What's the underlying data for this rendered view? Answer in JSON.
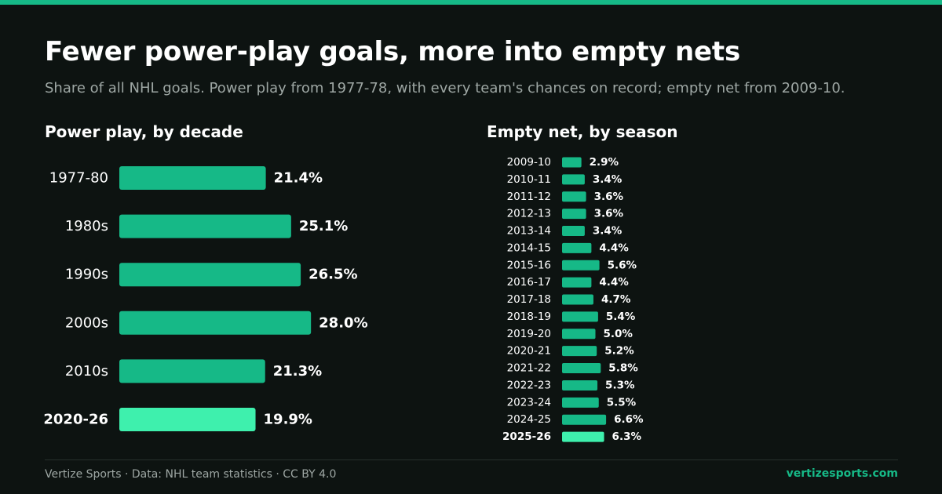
{
  "header": {
    "title": "Fewer power-play goals, more into empty nets",
    "subtitle": "Share of all NHL goals. Power play from 1977-78, with every team's chances on record; empty net from 2009-10."
  },
  "colors": {
    "background": "#0d1311",
    "accent": "#16b987",
    "bar": "#16b987",
    "bar_highlight": "#3ef0ad",
    "text": "#ffffff",
    "muted": "#9ea7a4"
  },
  "chart_data": [
    {
      "type": "bar",
      "orientation": "horizontal",
      "title": "Power play, by decade",
      "categories": [
        "1977-80",
        "1980s",
        "1990s",
        "2000s",
        "2010s",
        "2020-26"
      ],
      "values": [
        21.4,
        25.1,
        26.5,
        28.0,
        21.3,
        19.9
      ],
      "value_labels": [
        "21.4%",
        "25.1%",
        "26.5%",
        "28.0%",
        "21.3%",
        "19.9%"
      ],
      "highlight": "2020-26",
      "unit": "%"
    },
    {
      "type": "bar",
      "orientation": "horizontal",
      "title": "Empty net, by season",
      "categories": [
        "2009-10",
        "2010-11",
        "2011-12",
        "2012-13",
        "2013-14",
        "2014-15",
        "2015-16",
        "2016-17",
        "2017-18",
        "2018-19",
        "2019-20",
        "2020-21",
        "2021-22",
        "2022-23",
        "2023-24",
        "2024-25",
        "2025-26"
      ],
      "values": [
        2.9,
        3.4,
        3.6,
        3.6,
        3.4,
        4.4,
        5.6,
        4.4,
        4.7,
        5.4,
        5.0,
        5.2,
        5.8,
        5.3,
        5.5,
        6.6,
        6.3
      ],
      "value_labels": [
        "2.9%",
        "3.4%",
        "3.6%",
        "3.6%",
        "3.4%",
        "4.4%",
        "5.6%",
        "4.4%",
        "4.7%",
        "5.4%",
        "5.0%",
        "5.2%",
        "5.8%",
        "5.3%",
        "5.5%",
        "6.6%",
        "6.3%"
      ],
      "highlight": "2025-26",
      "unit": "%"
    }
  ],
  "footer": {
    "source": "Vertize Sports · Data: NHL team statistics · CC BY 4.0",
    "site": "vertizesports.com"
  }
}
